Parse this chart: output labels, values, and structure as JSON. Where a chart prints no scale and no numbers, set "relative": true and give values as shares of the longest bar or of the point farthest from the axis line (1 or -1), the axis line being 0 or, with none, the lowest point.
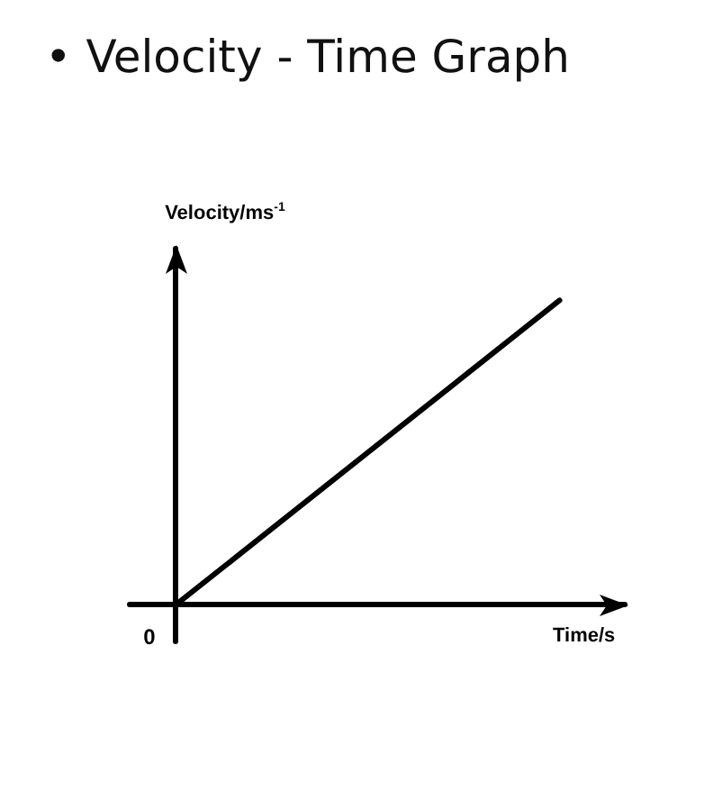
{
  "chart_data": {
    "type": "line",
    "title": "• Velocity - Time Graph",
    "xlabel": "Time/s",
    "ylabel": "Velocity/ms$^{-1}$",
    "categories": [
      null,
      null
    ],
    "relative": true,
    "color": "#000000",
    "values": [
      0,
      1
    ],
    "marker": "none",
    "line_style": "solid",
    "grid": false,
    "annotations": [
      "0"
    ]
  }
}
